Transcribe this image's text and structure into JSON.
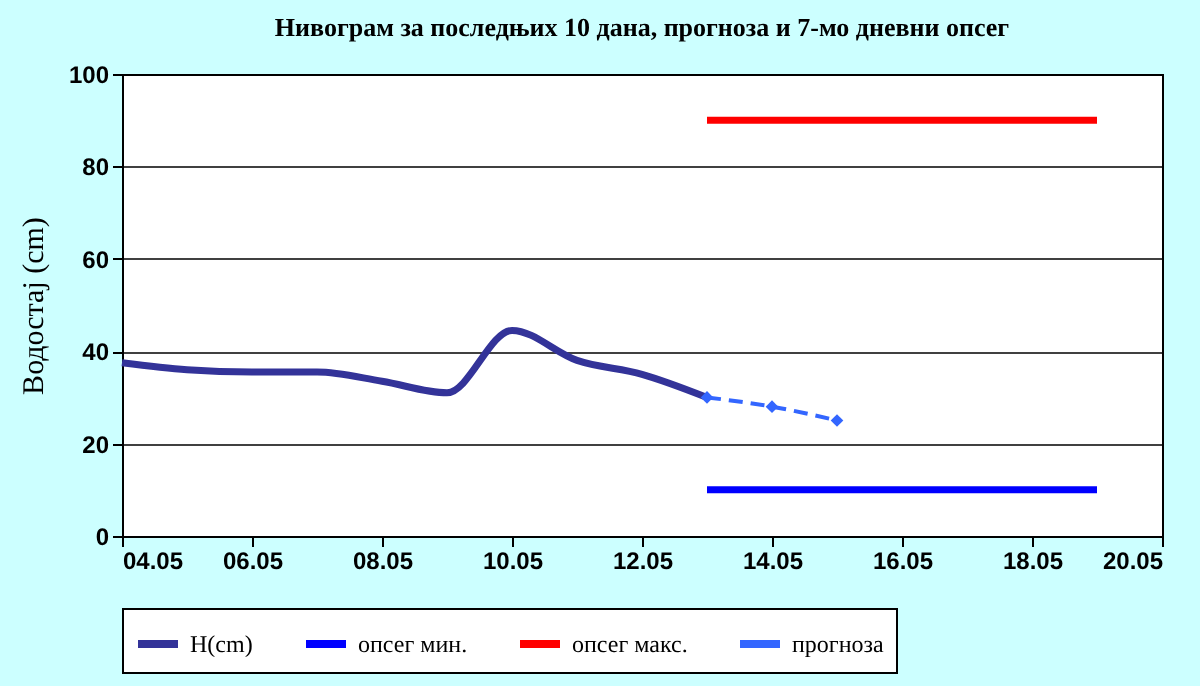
{
  "chart_data": {
    "type": "line",
    "title": "Нивограм за последњих 10 дана, прогноза и 7-мо дневни опсег",
    "ylabel": "Водостај (cm)",
    "xlim": [
      "--05-04",
      "--05-20"
    ],
    "xticks": [
      {
        "value": "--05-04",
        "label": "04.05"
      },
      {
        "value": "--05-06",
        "label": "06.05"
      },
      {
        "value": "--05-08",
        "label": "08.05"
      },
      {
        "value": "--05-10",
        "label": "10.05"
      },
      {
        "value": "--05-12",
        "label": "12.05"
      },
      {
        "value": "--05-14",
        "label": "14.05"
      },
      {
        "value": "--05-16",
        "label": "16.05"
      },
      {
        "value": "--05-18",
        "label": "18.05"
      },
      {
        "value": "--05-20",
        "label": "20.05"
      }
    ],
    "ylim": [
      0,
      100
    ],
    "yticks": [
      0,
      20,
      40,
      60,
      80,
      100
    ],
    "grid": "y",
    "legend": "bottom",
    "series": [
      {
        "name": "H(cm)",
        "color": "#333399",
        "line_style": "solid",
        "marker": "none",
        "x": [
          "--05-04",
          "--05-05",
          "--05-06",
          "--05-07",
          "--05-08",
          "--05-09",
          "--05-10",
          "--05-11",
          "--05-12",
          "--05-13"
        ],
        "values": [
          37.5,
          36,
          35.5,
          35.5,
          33.5,
          31,
          44.5,
          38,
          35,
          30
        ]
      },
      {
        "name": "опсег мин.",
        "color": "#0000ff",
        "line_style": "solid",
        "marker": "none",
        "x": [
          "--05-13",
          "--05-19"
        ],
        "values": [
          10,
          10
        ]
      },
      {
        "name": "опсег макс.",
        "color": "#ff0000",
        "line_style": "solid",
        "marker": "none",
        "x": [
          "--05-13",
          "--05-19"
        ],
        "values": [
          90,
          90
        ]
      },
      {
        "name": "прогноза",
        "color": "#3366ff",
        "line_style": "dashed",
        "marker": "diamond",
        "x": [
          "--05-13",
          "--05-14",
          "--05-15"
        ],
        "values": [
          30,
          28,
          25
        ]
      }
    ]
  }
}
